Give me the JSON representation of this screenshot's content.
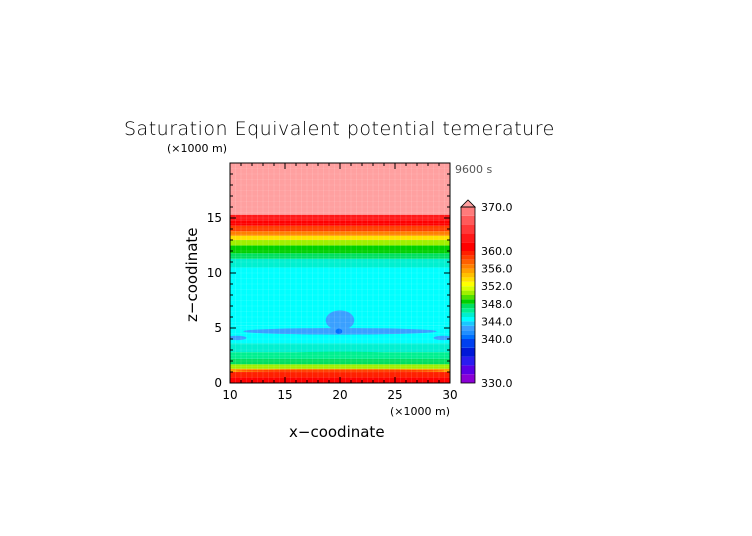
{
  "chart_data": {
    "type": "heatmap",
    "title": "Saturation Equivalent potential temerature",
    "xlabel": "x−coodinate",
    "ylabel": "z−coodinate",
    "x_unit": "(×1000 m)",
    "y_unit": "(×1000 m)",
    "time_label": "9600 s",
    "xlim": [
      10,
      30
    ],
    "ylim": [
      0,
      20
    ],
    "x_ticks": [
      10,
      15,
      20,
      25,
      30
    ],
    "y_ticks": [
      0,
      5,
      10,
      15
    ],
    "colorbar": {
      "vmin": 330,
      "vmax": 370,
      "extend": "max",
      "tick_values": [
        330.0,
        340.0,
        344.0,
        348.0,
        352.0,
        356.0,
        360.0,
        370.0
      ],
      "tick_labels": [
        "330.0",
        "340.0",
        "344.0",
        "348.0",
        "352.0",
        "356.0",
        "360.0",
        "370.0"
      ],
      "bins": [
        {
          "lo": 330,
          "hi": 332,
          "color": "#8a00d6"
        },
        {
          "lo": 332,
          "hi": 334,
          "color": "#5a00e6"
        },
        {
          "lo": 334,
          "hi": 336,
          "color": "#2a1cf0"
        },
        {
          "lo": 336,
          "hi": 338,
          "color": "#0018d8"
        },
        {
          "lo": 338,
          "hi": 340,
          "color": "#0040f0"
        },
        {
          "lo": 340,
          "hi": 341,
          "color": "#0070ff"
        },
        {
          "lo": 341,
          "hi": 342,
          "color": "#1f8fff"
        },
        {
          "lo": 342,
          "hi": 343,
          "color": "#3aa0ff"
        },
        {
          "lo": 343,
          "hi": 344,
          "color": "#19c8ff"
        },
        {
          "lo": 344,
          "hi": 345,
          "color": "#00ffff"
        },
        {
          "lo": 345,
          "hi": 346,
          "color": "#00f0d0"
        },
        {
          "lo": 346,
          "hi": 347,
          "color": "#00f090"
        },
        {
          "lo": 347,
          "hi": 348,
          "color": "#00e060"
        },
        {
          "lo": 348,
          "hi": 349,
          "color": "#00d000"
        },
        {
          "lo": 349,
          "hi": 350,
          "color": "#50e000"
        },
        {
          "lo": 350,
          "hi": 351,
          "color": "#a0f000"
        },
        {
          "lo": 351,
          "hi": 352,
          "color": "#d8ff00"
        },
        {
          "lo": 352,
          "hi": 353,
          "color": "#ffff00"
        },
        {
          "lo": 353,
          "hi": 354,
          "color": "#ffe000"
        },
        {
          "lo": 354,
          "hi": 355,
          "color": "#ffc000"
        },
        {
          "lo": 355,
          "hi": 356,
          "color": "#ffa000"
        },
        {
          "lo": 356,
          "hi": 357,
          "color": "#ff8000"
        },
        {
          "lo": 357,
          "hi": 358,
          "color": "#ff6000"
        },
        {
          "lo": 358,
          "hi": 359,
          "color": "#ff4000"
        },
        {
          "lo": 359,
          "hi": 360,
          "color": "#ff2000"
        },
        {
          "lo": 360,
          "hi": 362,
          "color": "#ff0000"
        },
        {
          "lo": 362,
          "hi": 364,
          "color": "#ff1818"
        },
        {
          "lo": 364,
          "hi": 366,
          "color": "#ff3838"
        },
        {
          "lo": 366,
          "hi": 368,
          "color": "#ff5a5a"
        },
        {
          "lo": 368,
          "hi": 370,
          "color": "#ff7b7b"
        },
        {
          "lo": 370,
          "hi": 372,
          "color": "#ffa0a0"
        }
      ]
    },
    "layers": [
      {
        "z0": 0.0,
        "z1": 0.5,
        "value": 361
      },
      {
        "z0": 0.5,
        "z1": 1.0,
        "value": 359
      },
      {
        "z0": 1.0,
        "z1": 1.3,
        "value": 355
      },
      {
        "z0": 1.3,
        "z1": 1.7,
        "value": 350
      },
      {
        "z0": 1.7,
        "z1": 2.2,
        "value": 347
      },
      {
        "z0": 2.2,
        "z1": 2.8,
        "value": 346
      },
      {
        "z0": 2.8,
        "z1": 3.6,
        "value": 345
      },
      {
        "z0": 3.6,
        "z1": 4.0,
        "value": 344.5
      },
      {
        "z0": 4.0,
        "z1": 5.2,
        "value": 344.2
      },
      {
        "z0": 5.2,
        "z1": 10.5,
        "value": 344.5
      },
      {
        "z0": 10.5,
        "z1": 11.3,
        "value": 345.5
      },
      {
        "z0": 11.3,
        "z1": 11.8,
        "value": 347
      },
      {
        "z0": 11.8,
        "z1": 12.5,
        "value": 348.5
      },
      {
        "z0": 12.5,
        "z1": 13.0,
        "value": 350
      },
      {
        "z0": 13.0,
        "z1": 13.4,
        "value": 353
      },
      {
        "z0": 13.4,
        "z1": 13.8,
        "value": 356
      },
      {
        "z0": 13.8,
        "z1": 14.3,
        "value": 358
      },
      {
        "z0": 14.3,
        "z1": 14.8,
        "value": 360.5
      },
      {
        "z0": 14.8,
        "z1": 15.3,
        "value": 363
      },
      {
        "z0": 15.3,
        "z1": 20.0,
        "value": 371
      }
    ],
    "features": [
      {
        "kind": "ellipse",
        "cx": 20.0,
        "cz": 4.7,
        "rx": 8.8,
        "rz": 0.3,
        "value": 342.5
      },
      {
        "kind": "ellipse",
        "cx": 10.6,
        "cz": 4.1,
        "rx": 0.9,
        "rz": 0.2,
        "value": 342.5
      },
      {
        "kind": "ellipse",
        "cx": 29.4,
        "cz": 4.1,
        "rx": 0.9,
        "rz": 0.2,
        "value": 342.5
      },
      {
        "kind": "ellipse",
        "cx": 20.0,
        "cz": 5.7,
        "rx": 1.3,
        "rz": 0.9,
        "value": 342.5
      },
      {
        "kind": "ellipse",
        "cx": 19.9,
        "cz": 4.7,
        "rx": 0.3,
        "rz": 0.25,
        "value": 340.5
      },
      {
        "kind": "ellipse",
        "cx": 20.0,
        "cz": 2.7,
        "rx": 4.5,
        "rz": 0.15,
        "value": 346.5
      },
      {
        "kind": "ellipse",
        "cx": 20.0,
        "cz": 1.1,
        "rx": 9.5,
        "rz": 0.12,
        "value": 358.5
      }
    ]
  }
}
